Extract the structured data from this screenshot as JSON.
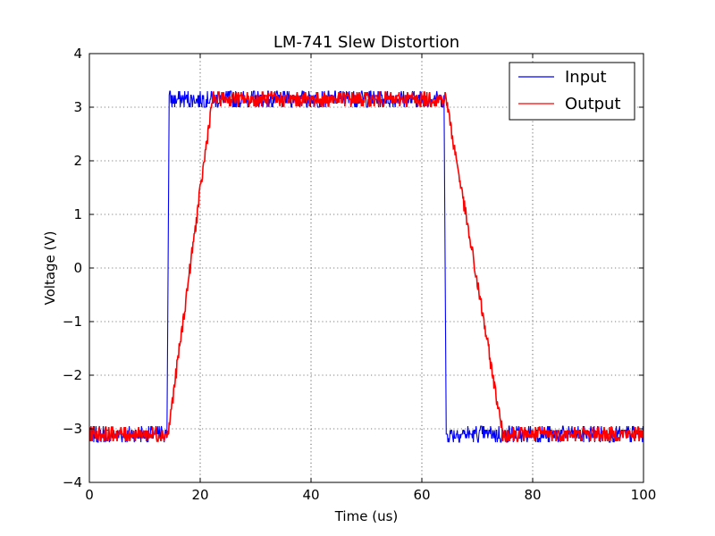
{
  "chart_data": {
    "type": "line",
    "title": "LM-741 Slew Distortion",
    "xlabel": "Time (us)",
    "ylabel": "Voltage (V)",
    "xlim": [
      0,
      100
    ],
    "ylim": [
      -4,
      4
    ],
    "xticks": [
      0,
      20,
      40,
      60,
      80,
      100
    ],
    "yticks": [
      -4,
      -3,
      -2,
      -1,
      0,
      1,
      2,
      3,
      4
    ],
    "xtick_labels": [
      "0",
      "20",
      "40",
      "60",
      "80",
      "100"
    ],
    "ytick_labels": [
      "−4",
      "−3",
      "−2",
      "−1",
      "0",
      "1",
      "2",
      "3",
      "4"
    ],
    "grid": true,
    "legend_position": "top-right",
    "series": [
      {
        "name": "Input",
        "color": "#0000ff",
        "x": [
          0,
          14.0,
          14.2,
          14.4,
          64.0,
          64.2,
          64.4,
          100
        ],
        "y": [
          -3.1,
          -3.1,
          0.0,
          3.15,
          3.15,
          0.0,
          -3.1,
          -3.1
        ],
        "noise_amplitude": 0.25
      },
      {
        "name": "Output",
        "color": "#ff0000",
        "x": [
          0,
          14.2,
          22.2,
          64.4,
          74.6,
          100
        ],
        "y": [
          -3.1,
          -3.1,
          3.15,
          3.15,
          -3.1,
          -3.1
        ],
        "noise_amplitude": 0.22
      }
    ]
  }
}
